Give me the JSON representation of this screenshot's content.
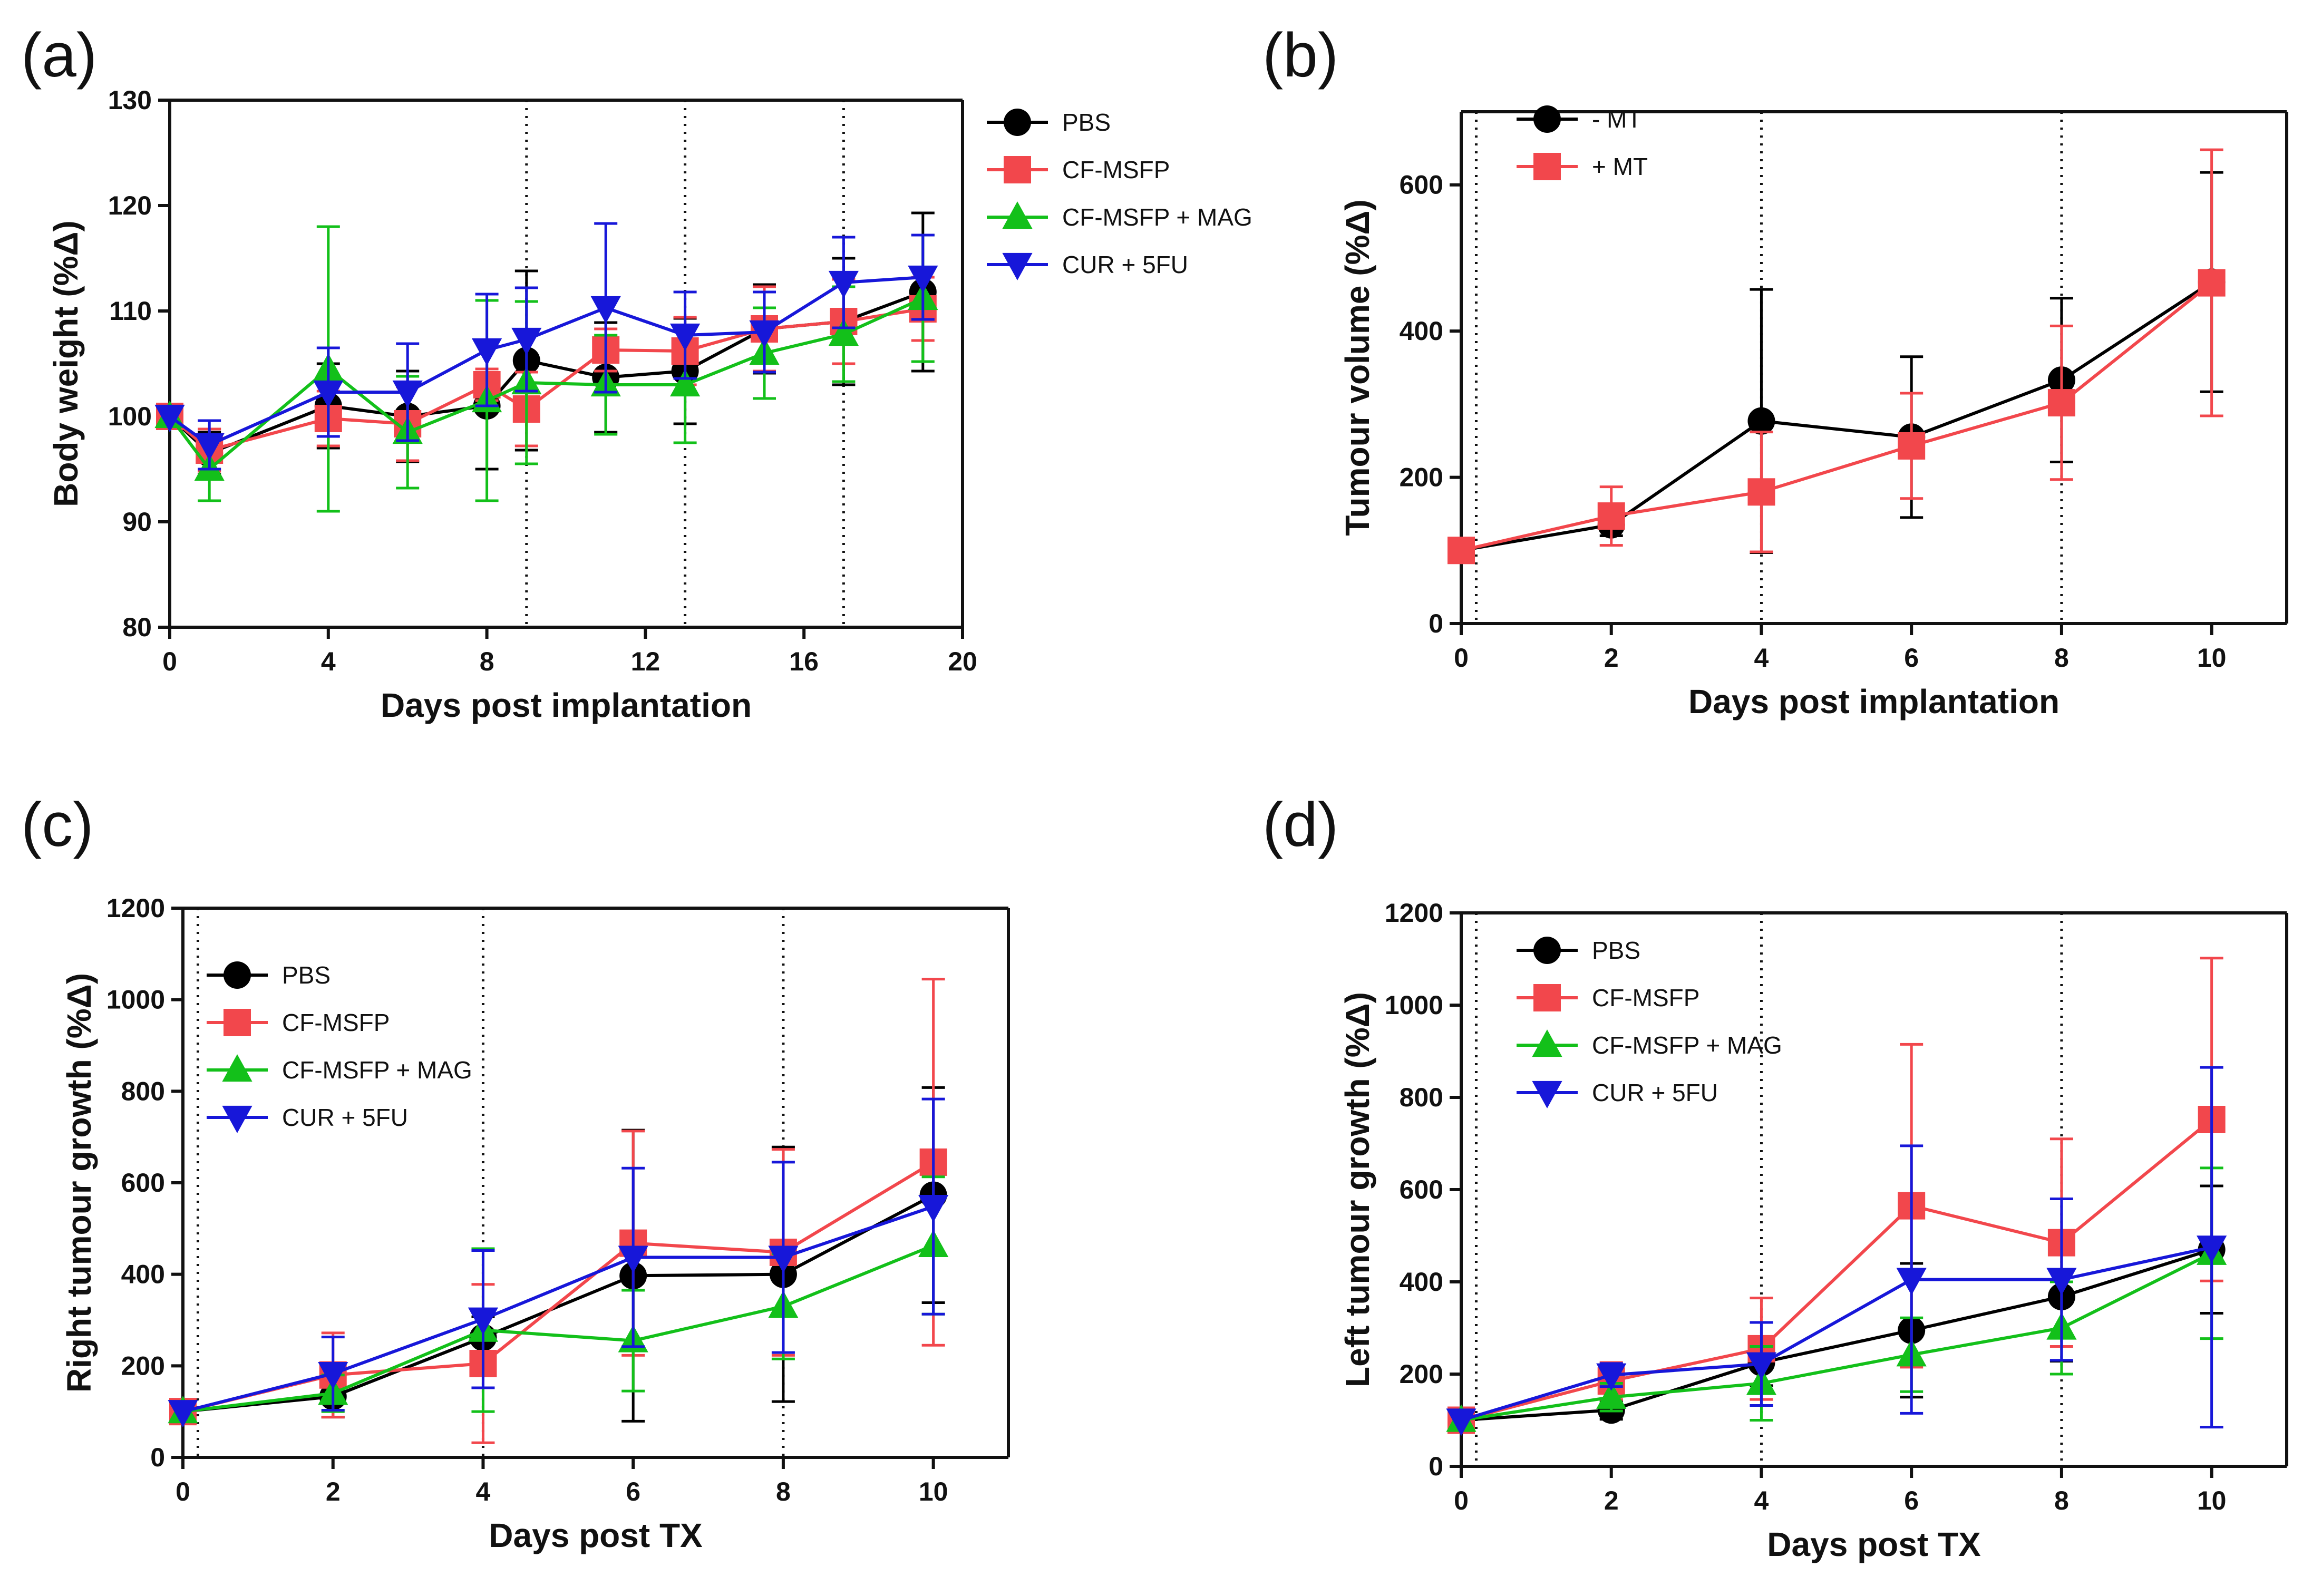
{
  "chart_data": [
    {
      "panel": "(a)",
      "type": "line",
      "xlabel": "Days post implantation",
      "ylabel": "Body weight (%Δ)",
      "xlim": [
        0,
        20
      ],
      "ylim": [
        80,
        130
      ],
      "xticks": [
        0,
        4,
        8,
        12,
        16,
        20
      ],
      "yticks": [
        80,
        90,
        100,
        110,
        120,
        130
      ],
      "vlines": [
        9,
        13,
        17
      ],
      "legend": "top-right-outside",
      "series": [
        {
          "name": "PBS",
          "color": "#000000",
          "marker": "circle",
          "x": [
            0,
            1,
            4,
            6,
            8,
            9,
            11,
            13,
            15,
            17,
            19
          ],
          "y": [
            100,
            96.5,
            101,
            100,
            101,
            105.3,
            103.7,
            104.3,
            108.3,
            109,
            111.8
          ],
          "err": [
            0,
            2,
            4,
            4.3,
            6,
            8.5,
            5.2,
            5,
            4.2,
            6,
            7.5
          ]
        },
        {
          "name": "CF-MSFP",
          "color": "#f2474c",
          "marker": "square",
          "x": [
            0,
            1,
            4,
            6,
            8,
            9,
            11,
            13,
            15,
            17,
            19
          ],
          "y": [
            100,
            96.8,
            99.8,
            99.3,
            103,
            100.7,
            106.3,
            106.2,
            108.3,
            109,
            110.2
          ],
          "err": [
            0,
            2,
            2.6,
            3.5,
            1.5,
            3.5,
            2,
            3.2,
            4,
            4,
            3
          ]
        },
        {
          "name": "CF-MSFP + MAG",
          "color": "#13c01a",
          "marker": "triangle-up",
          "x": [
            0,
            1,
            4,
            6,
            8,
            9,
            11,
            13,
            15,
            17,
            19
          ],
          "y": [
            100,
            95,
            104.5,
            98.5,
            101.5,
            103.2,
            103,
            103,
            106,
            107.8,
            111.2
          ],
          "err": [
            0,
            3,
            13.5,
            5.3,
            9.5,
            7.7,
            4.7,
            5.5,
            4.3,
            4.5,
            6
          ]
        },
        {
          "name": "CUR + 5FU",
          "color": "#1717d9",
          "marker": "triangle-down",
          "x": [
            0,
            1,
            4,
            6,
            8,
            9,
            11,
            13,
            15,
            17,
            19
          ],
          "y": [
            100,
            97.3,
            102.3,
            102.3,
            106.3,
            107.3,
            110.3,
            107.7,
            108,
            112.7,
            113.2
          ],
          "err": [
            0,
            2.3,
            4.2,
            4.6,
            5.3,
            4.9,
            8,
            4.1,
            3.8,
            4.3,
            4
          ]
        }
      ]
    },
    {
      "panel": "(b)",
      "type": "line",
      "xlabel": "Days post implantation",
      "ylabel": "Tumour volume (%Δ)",
      "xlim": [
        0,
        11
      ],
      "ylim": [
        0,
        700
      ],
      "xticks": [
        0,
        2,
        4,
        6,
        8,
        10
      ],
      "yticks": [
        0,
        200,
        400,
        600
      ],
      "vlines": [
        0.2,
        4,
        8
      ],
      "legend": "top-left",
      "series": [
        {
          "name": "- MT",
          "color": "#000000",
          "marker": "circle",
          "x": [
            0,
            2,
            4,
            6,
            8,
            10
          ],
          "y": [
            100,
            135,
            277,
            255,
            333,
            467
          ],
          "err": [
            0,
            15,
            180,
            110,
            112,
            150
          ]
        },
        {
          "name": "+ MT",
          "color": "#f2474c",
          "marker": "square",
          "x": [
            0,
            2,
            4,
            6,
            8,
            10
          ],
          "y": [
            100,
            147,
            180,
            243,
            302,
            466
          ],
          "err": [
            0,
            40,
            82,
            72,
            105,
            182
          ]
        }
      ]
    },
    {
      "panel": "(c)",
      "type": "line",
      "xlabel": "Days post TX",
      "ylabel": "Right tumour growth (%Δ)",
      "xlim": [
        0,
        11
      ],
      "ylim": [
        0,
        1200
      ],
      "xticks": [
        0,
        2,
        4,
        6,
        8,
        10
      ],
      "yticks": [
        0,
        200,
        400,
        600,
        800,
        1000,
        1200
      ],
      "vlines": [
        0.2,
        4,
        8
      ],
      "legend": "top-left",
      "series": [
        {
          "name": "PBS",
          "color": "#000000",
          "marker": "circle",
          "x": [
            0,
            2,
            4,
            6,
            8,
            10
          ],
          "y": [
            100,
            133,
            262,
            397,
            400,
            573
          ],
          "err": [
            0,
            45,
            45,
            318,
            278,
            235
          ]
        },
        {
          "name": "CF-MSFP",
          "color": "#f2474c",
          "marker": "square",
          "x": [
            0,
            2,
            4,
            6,
            8,
            10
          ],
          "y": [
            100,
            180,
            205,
            468,
            448,
            645
          ],
          "err": [
            0,
            92,
            173,
            245,
            225,
            400
          ]
        },
        {
          "name": "CF-MSFP + MAG",
          "color": "#13c01a",
          "marker": "triangle-up",
          "x": [
            0,
            2,
            4,
            6,
            8,
            10
          ],
          "y": [
            100,
            140,
            278,
            255,
            330,
            463
          ],
          "err": [
            0,
            40,
            178,
            110,
            115,
            150
          ]
        },
        {
          "name": "CUR + 5FU",
          "color": "#1717d9",
          "marker": "triangle-down",
          "x": [
            0,
            2,
            4,
            6,
            8,
            10
          ],
          "y": [
            100,
            183,
            302,
            437,
            437,
            548
          ],
          "err": [
            0,
            80,
            150,
            195,
            208,
            235
          ]
        }
      ]
    },
    {
      "panel": "(d)",
      "type": "line",
      "xlabel": "Days post TX",
      "ylabel": "Left tumour growth (%Δ)",
      "xlim": [
        0,
        11
      ],
      "ylim": [
        0,
        1200
      ],
      "xticks": [
        0,
        2,
        4,
        6,
        8,
        10
      ],
      "yticks": [
        0,
        200,
        400,
        600,
        800,
        1000,
        1200
      ],
      "vlines": [
        0.2,
        4,
        8
      ],
      "legend": "top-left",
      "series": [
        {
          "name": "PBS",
          "color": "#000000",
          "marker": "circle",
          "x": [
            0,
            2,
            4,
            6,
            8,
            10
          ],
          "y": [
            100,
            122,
            225,
            295,
            368,
            470
          ],
          "err": [
            0,
            20,
            50,
            145,
            140,
            138
          ]
        },
        {
          "name": "CF-MSFP",
          "color": "#f2474c",
          "marker": "square",
          "x": [
            0,
            2,
            4,
            6,
            8,
            10
          ],
          "y": [
            100,
            185,
            255,
            565,
            485,
            752
          ],
          "err": [
            0,
            40,
            110,
            350,
            225,
            350
          ]
        },
        {
          "name": "CF-MSFP + MAG",
          "color": "#13c01a",
          "marker": "triangle-up",
          "x": [
            0,
            2,
            4,
            6,
            8,
            10
          ],
          "y": [
            100,
            150,
            180,
            242,
            300,
            462
          ],
          "err": [
            0,
            30,
            80,
            80,
            100,
            185
          ]
        },
        {
          "name": "CUR + 5FU",
          "color": "#1717d9",
          "marker": "triangle-down",
          "x": [
            0,
            2,
            4,
            6,
            8,
            10
          ],
          "y": [
            100,
            198,
            222,
            405,
            405,
            475
          ],
          "err": [
            0,
            25,
            90,
            290,
            175,
            390
          ]
        }
      ]
    }
  ]
}
